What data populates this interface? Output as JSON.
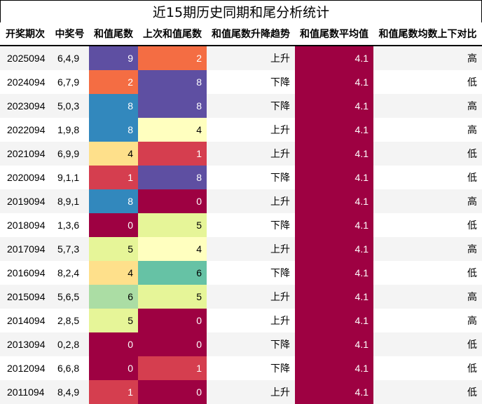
{
  "title": "近15期历史同期和尾分析统计",
  "chart_data": {
    "type": "table",
    "columns": [
      "开奖期次",
      "中奖号",
      "和值尾数",
      "上次和值尾数",
      "和值尾数升降趋势",
      "和值尾数平均值",
      "和值尾数均数上下对比"
    ],
    "rows": [
      {
        "issue": "2025094",
        "number": "6,4,9",
        "tail": 9,
        "prev_tail": 2,
        "trend": "上升",
        "avg": "4.1",
        "cmp": "高"
      },
      {
        "issue": "2024094",
        "number": "6,7,9",
        "tail": 2,
        "prev_tail": 8,
        "trend": "下降",
        "avg": "4.1",
        "cmp": "低"
      },
      {
        "issue": "2023094",
        "number": "5,0,3",
        "tail": 8,
        "prev_tail": 8,
        "trend": "下降",
        "avg": "4.1",
        "cmp": "高"
      },
      {
        "issue": "2022094",
        "number": "1,9,8",
        "tail": 8,
        "prev_tail": 4,
        "trend": "上升",
        "avg": "4.1",
        "cmp": "高"
      },
      {
        "issue": "2021094",
        "number": "6,9,9",
        "tail": 4,
        "prev_tail": 1,
        "trend": "上升",
        "avg": "4.1",
        "cmp": "低"
      },
      {
        "issue": "2020094",
        "number": "9,1,1",
        "tail": 1,
        "prev_tail": 8,
        "trend": "下降",
        "avg": "4.1",
        "cmp": "低"
      },
      {
        "issue": "2019094",
        "number": "8,9,1",
        "tail": 8,
        "prev_tail": 0,
        "trend": "上升",
        "avg": "4.1",
        "cmp": "高"
      },
      {
        "issue": "2018094",
        "number": "1,3,6",
        "tail": 0,
        "prev_tail": 5,
        "trend": "下降",
        "avg": "4.1",
        "cmp": "低"
      },
      {
        "issue": "2017094",
        "number": "5,7,3",
        "tail": 5,
        "prev_tail": 4,
        "trend": "上升",
        "avg": "4.1",
        "cmp": "高"
      },
      {
        "issue": "2016094",
        "number": "8,2,4",
        "tail": 4,
        "prev_tail": 6,
        "trend": "下降",
        "avg": "4.1",
        "cmp": "低"
      },
      {
        "issue": "2015094",
        "number": "5,6,5",
        "tail": 6,
        "prev_tail": 5,
        "trend": "上升",
        "avg": "4.1",
        "cmp": "高"
      },
      {
        "issue": "2014094",
        "number": "2,8,5",
        "tail": 5,
        "prev_tail": 0,
        "trend": "上升",
        "avg": "4.1",
        "cmp": "高"
      },
      {
        "issue": "2013094",
        "number": "0,2,8",
        "tail": 0,
        "prev_tail": 0,
        "trend": "下降",
        "avg": "4.1",
        "cmp": "低"
      },
      {
        "issue": "2012094",
        "number": "6,6,8",
        "tail": 0,
        "prev_tail": 1,
        "trend": "下降",
        "avg": "4.1",
        "cmp": "低"
      },
      {
        "issue": "2011094",
        "number": "8,4,9",
        "tail": 1,
        "prev_tail": 0,
        "trend": "上升",
        "avg": "4.1",
        "cmp": "低"
      }
    ],
    "colors": {
      "digit": {
        "0": "#9e0142",
        "1": "#d53e4f",
        "2": "#f46d43",
        "4": "#fee08b",
        "5": "#e6f598",
        "6": "#abdda4",
        "8": "#3288bd",
        "9": "#5e4fa2"
      },
      "digit_alt": {
        "4": "#ffffbf",
        "5": "#e6f598",
        "6": "#66c2a5",
        "8": "#5e4fa2"
      },
      "avg": "#9e0142",
      "row_odd": "#f4f4f4",
      "row_even": "#ffffff"
    }
  }
}
